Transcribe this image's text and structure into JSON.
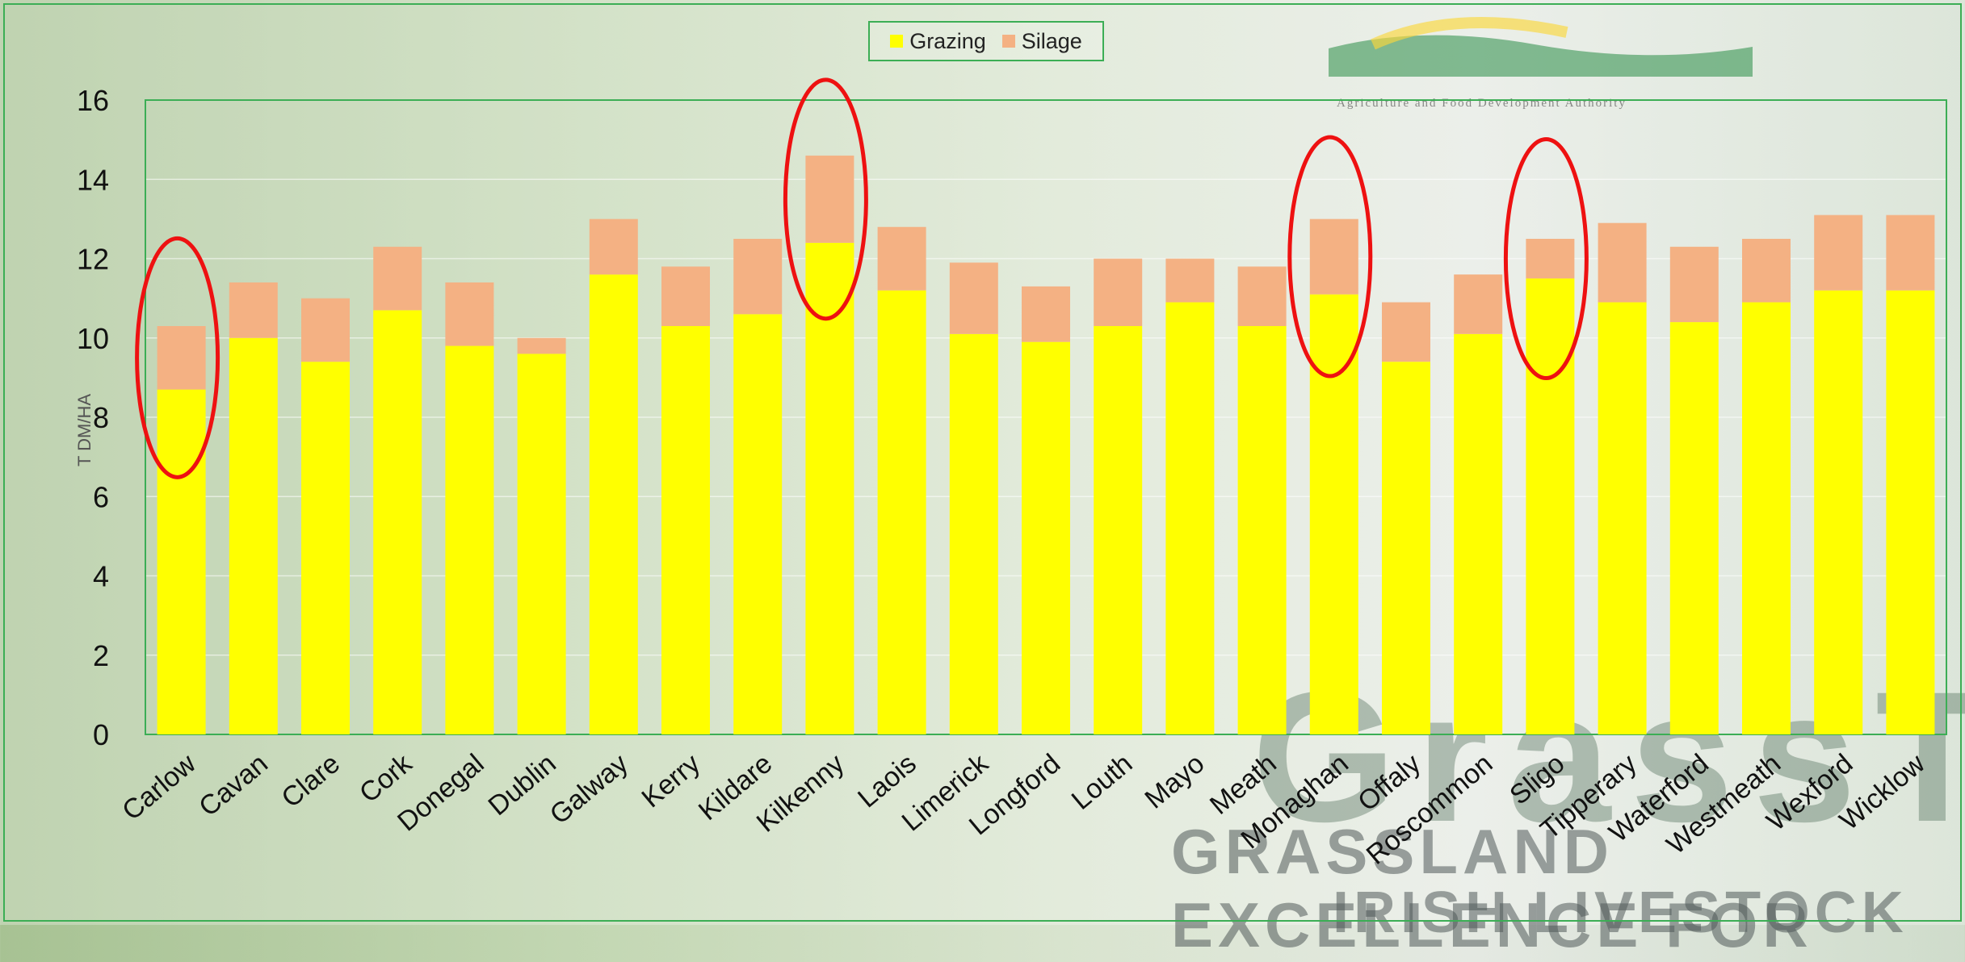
{
  "legend": {
    "grazing_label": "Grazing",
    "silage_label": "Silage"
  },
  "colors": {
    "grazing": "#ffff00",
    "silage": "#f4b183",
    "frame": "#3cae55",
    "highlight": "#ee1111"
  },
  "watermark": {
    "logo_caption": "Agriculture and Food Development Authority",
    "brand": "GrassTo",
    "tagline_line1": "GRASSLAND EXCELLENCE FOR",
    "tagline_line2": "IRISH LIVESTOCK"
  },
  "chart_data": {
    "type": "bar",
    "stacked": true,
    "ylabel": "T DM/HA",
    "ylim": [
      0,
      16
    ],
    "yticks": [
      0,
      2,
      4,
      6,
      8,
      10,
      12,
      14,
      16
    ],
    "grid": true,
    "legend_position": "top",
    "categories": [
      "Carlow",
      "Cavan",
      "Clare",
      "Cork",
      "Donegal",
      "Dublin",
      "Galway",
      "Kerry",
      "Kildare",
      "Kilkenny",
      "Laois",
      "Limerick",
      "Longford",
      "Louth",
      "Mayo",
      "Meath",
      "Monaghan",
      "Offaly",
      "Roscommon",
      "Sligo",
      "Tipperary",
      "Waterford",
      "Westmeath",
      "Wexford",
      "Wicklow"
    ],
    "series": [
      {
        "name": "Grazing",
        "values": [
          8.7,
          10.0,
          9.4,
          10.7,
          9.8,
          9.6,
          11.6,
          10.3,
          10.6,
          12.4,
          11.2,
          10.1,
          9.9,
          10.3,
          10.9,
          10.3,
          11.1,
          9.4,
          10.1,
          11.5,
          10.9,
          10.4,
          10.9,
          11.2,
          11.2
        ]
      },
      {
        "name": "Silage",
        "values": [
          1.6,
          1.4,
          1.6,
          1.6,
          1.6,
          0.4,
          1.4,
          1.5,
          1.9,
          2.2,
          1.6,
          1.8,
          1.4,
          1.7,
          1.1,
          1.5,
          1.9,
          1.5,
          1.5,
          1.0,
          2.0,
          1.9,
          1.6,
          1.9,
          1.9
        ]
      }
    ],
    "highlighted": [
      "Carlow",
      "Kilkenny",
      "Monaghan",
      "Sligo"
    ]
  }
}
